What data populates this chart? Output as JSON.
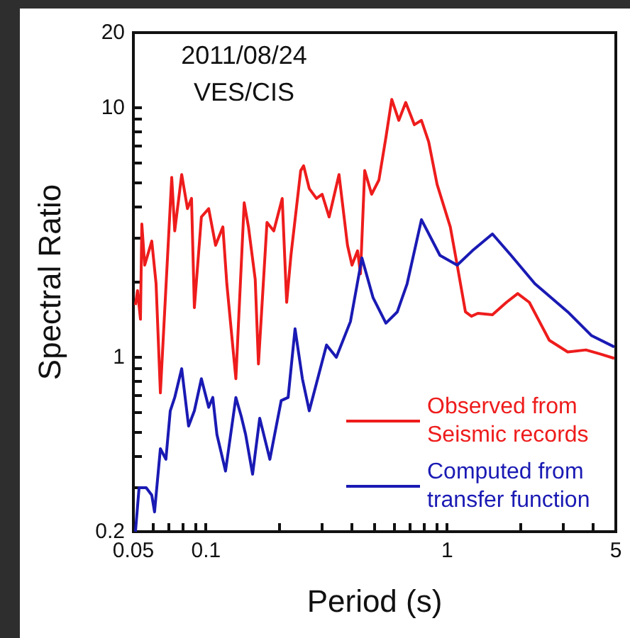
{
  "chart_data": {
    "type": "line",
    "xlabel": "Period (s)",
    "ylabel": "Spectral Ratio",
    "annotations": [
      "2011/08/24",
      "VES/CIS"
    ],
    "log": "xy",
    "grid": false,
    "legend": "bottom right",
    "marker": "none",
    "line_style": "solid",
    "xlim": [
      0.05,
      5
    ],
    "ylim": [
      0.2,
      20
    ],
    "xticks": [
      0.05,
      {
        "value": 0.06,
        "label": null
      },
      {
        "value": 0.07,
        "label": null
      },
      {
        "value": 0.08,
        "label": null
      },
      {
        "value": 0.09,
        "label": null
      },
      0.1,
      {
        "value": 0.2,
        "label": null
      },
      {
        "value": 0.3,
        "label": null
      },
      {
        "value": 0.4,
        "label": null
      },
      {
        "value": 0.5,
        "label": null
      },
      {
        "value": 0.6,
        "label": null
      },
      {
        "value": 0.7,
        "label": null
      },
      {
        "value": 0.8,
        "label": null
      },
      {
        "value": 0.9,
        "label": null
      },
      1,
      {
        "value": 2,
        "label": null
      },
      {
        "value": 3,
        "label": null
      },
      {
        "value": 4,
        "label": null
      },
      5
    ],
    "yticks": [
      0.2,
      {
        "value": 0.3,
        "label": null
      },
      {
        "value": 0.4,
        "label": null
      },
      {
        "value": 0.5,
        "label": null
      },
      {
        "value": 0.6,
        "label": null
      },
      {
        "value": 0.7,
        "label": null
      },
      {
        "value": 0.8,
        "label": null
      },
      {
        "value": 0.9,
        "label": null
      },
      1,
      {
        "value": 2,
        "label": null
      },
      {
        "value": 3,
        "label": null
      },
      {
        "value": 4,
        "label": null
      },
      {
        "value": 5,
        "label": null
      },
      {
        "value": 6,
        "label": null
      },
      {
        "value": 7,
        "label": null
      },
      {
        "value": 8,
        "label": null
      },
      {
        "value": 9,
        "label": null
      },
      10,
      20
    ],
    "series": [
      {
        "name": "Observed from Seismic records",
        "color": "#ee1c1c",
        "x": [
          0.051,
          0.052,
          0.0535,
          0.0542,
          0.0557,
          0.0596,
          0.0621,
          0.0647,
          0.0721,
          0.0742,
          0.0793,
          0.0838,
          0.0871,
          0.0895,
          0.0957,
          0.1026,
          0.1096,
          0.1175,
          0.122,
          0.133,
          0.144,
          0.15,
          0.16,
          0.165,
          0.179,
          0.191,
          0.207,
          0.216,
          0.225,
          0.247,
          0.254,
          0.268,
          0.287,
          0.303,
          0.324,
          0.356,
          0.386,
          0.403,
          0.425,
          0.437,
          0.455,
          0.486,
          0.521,
          0.557,
          0.589,
          0.63,
          0.673,
          0.731,
          0.782,
          0.838,
          0.908,
          1.03,
          1.1,
          1.19,
          1.26,
          1.34,
          1.54,
          1.76,
          1.96,
          2.19,
          2.65,
          3.16,
          3.76,
          4.31,
          4.93
        ],
        "values": [
          1.62,
          1.85,
          1.42,
          3.42,
          2.34,
          2.92,
          1.97,
          0.72,
          5.26,
          3.21,
          5.4,
          3.94,
          4.33,
          1.58,
          3.65,
          3.94,
          2.81,
          3.33,
          1.97,
          0.82,
          4.16,
          3.33,
          2.05,
          0.94,
          3.47,
          3.21,
          4.33,
          1.66,
          2.56,
          5.6,
          5.85,
          4.74,
          4.33,
          4.5,
          3.65,
          5.4,
          2.81,
          2.34,
          2.67,
          2.16,
          5.6,
          4.5,
          5.13,
          7.6,
          10.8,
          8.9,
          10.5,
          8.55,
          8.9,
          7.3,
          4.93,
          3.33,
          2.34,
          1.52,
          1.46,
          1.5,
          1.48,
          1.66,
          1.8,
          1.66,
          1.17,
          1.05,
          1.07,
          1.03,
          0.99
        ]
      },
      {
        "name": "Computed from transfer function",
        "color": "#1a1ab4",
        "x": [
          0.051,
          0.0528,
          0.0565,
          0.0596,
          0.0612,
          0.0647,
          0.0682,
          0.0711,
          0.0742,
          0.0793,
          0.0847,
          0.0895,
          0.0957,
          0.1026,
          0.1067,
          0.111,
          0.1205,
          0.133,
          0.14,
          0.146,
          0.156,
          0.167,
          0.184,
          0.205,
          0.219,
          0.234,
          0.251,
          0.268,
          0.316,
          0.347,
          0.397,
          0.443,
          0.493,
          0.557,
          0.621,
          0.682,
          0.782,
          0.933,
          1.1,
          1.27,
          1.54,
          1.84,
          2.31,
          3.16,
          3.97,
          4.93
        ],
        "values": [
          0.2,
          0.3,
          0.3,
          0.28,
          0.24,
          0.43,
          0.39,
          0.61,
          0.69,
          0.9,
          0.53,
          0.61,
          0.82,
          0.63,
          0.69,
          0.49,
          0.35,
          0.69,
          0.58,
          0.49,
          0.34,
          0.57,
          0.39,
          0.67,
          0.69,
          1.3,
          0.82,
          0.61,
          1.12,
          1.0,
          1.39,
          2.5,
          1.73,
          1.37,
          1.52,
          1.97,
          3.56,
          2.56,
          2.34,
          2.67,
          3.12,
          2.56,
          1.97,
          1.52,
          1.22,
          1.1
        ]
      }
    ]
  }
}
